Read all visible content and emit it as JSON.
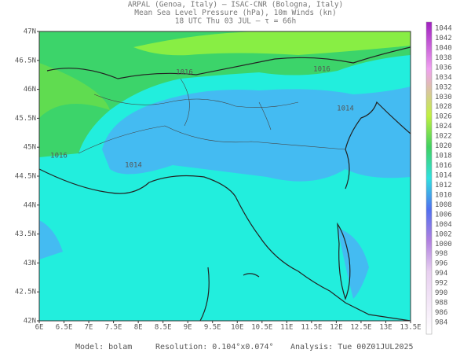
{
  "header": {
    "lines": [
      "ARPAL (Genoa, Italy)  –  ISAC-CNR (Bologna, Italy)",
      "Mean Sea Level Pressure (hPa), 10m Winds (kn)",
      "18 UTC Thu 03 JUL  –  τ = 66h"
    ]
  },
  "map": {
    "lat_labels": [
      "47N",
      "46.5N",
      "46N",
      "45.5N",
      "45N",
      "44.5N",
      "44N",
      "43.5N",
      "43N",
      "42.5N",
      "42N"
    ],
    "lon_labels": [
      "6E",
      "6.5E",
      "7E",
      "7.5E",
      "8E",
      "8.5E",
      "9E",
      "9.5E",
      "10E",
      "10.5E",
      "11E",
      "11.5E",
      "12E",
      "12.5E",
      "13E",
      "13.5E"
    ],
    "contour_labels": [
      "1016",
      "1016",
      "1014",
      "1016",
      "1014"
    ]
  },
  "colorbar": {
    "labels": [
      "1044",
      "1042",
      "1040",
      "1038",
      "1036",
      "1034",
      "1032",
      "1030",
      "1028",
      "1026",
      "1024",
      "1022",
      "1020",
      "1018",
      "1016",
      "1014",
      "1012",
      "1010",
      "1008",
      "1006",
      "1004",
      "1002",
      "1000",
      "998",
      "996",
      "994",
      "992",
      "990",
      "988",
      "986",
      "984"
    ]
  },
  "footer": {
    "model": "Model: bolam",
    "resolution": "Resolution: 0.104°x0.074°",
    "analysis": "Analysis: Tue 00Z01JUL2025"
  }
}
